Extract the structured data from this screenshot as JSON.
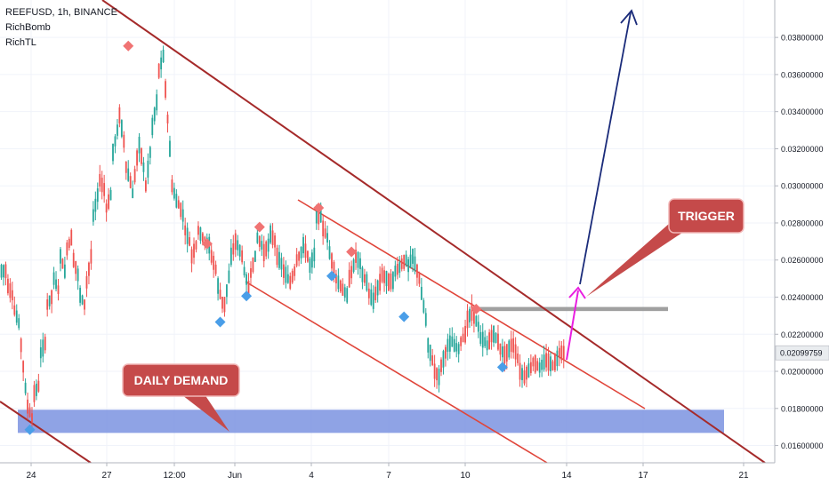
{
  "chart_data": {
    "type": "candlestick",
    "symbol_header": "REEFUSD, 1h, BINANCE",
    "indicators": [
      "RichBomb",
      "RichTL"
    ],
    "x_ticks": [
      "24",
      "27",
      "12:00",
      "Jun",
      "4",
      "7",
      "10",
      "14",
      "17",
      "21"
    ],
    "y_ticks": [
      "0.03800000",
      "0.03600000",
      "0.03400000",
      "0.03200000",
      "0.03000000",
      "0.02800000",
      "0.02600000",
      "0.02400000",
      "0.02200000",
      "0.02000000",
      "0.01800000",
      "0.01600000"
    ],
    "ylim": [
      0.0155,
      0.0393
    ],
    "current_price": {
      "value": 0.02099759,
      "label": "0.02099759"
    },
    "annotations": {
      "trigger": "TRIGGER",
      "daily_demand": "DAILY DEMAND"
    },
    "zones": {
      "daily_demand": {
        "from": 0.01668,
        "to": 0.01793
      },
      "trigger": {
        "from": 0.02325,
        "to": 0.02347
      }
    },
    "candles_path": [
      [
        0.0254,
        0.0254
      ],
      [
        0.0246,
        0.0241
      ],
      [
        0.0233,
        0.0226
      ],
      [
        0.0214,
        0.0191
      ],
      [
        0.0181,
        0.0175
      ],
      [
        0.0188,
        0.0192
      ],
      [
        0.021,
        0.0215
      ],
      [
        0.0236,
        0.024
      ],
      [
        0.025,
        0.0244
      ],
      [
        0.0262,
        0.0254
      ],
      [
        0.0266,
        0.0272
      ],
      [
        0.026,
        0.0252
      ],
      [
        0.0241,
        0.0236
      ],
      [
        0.0248,
        0.0262
      ],
      [
        0.0284,
        0.0295
      ],
      [
        0.0303,
        0.0298
      ],
      [
        0.0288,
        0.0295
      ],
      [
        0.0318,
        0.033
      ],
      [
        0.0338,
        0.0324
      ],
      [
        0.031,
        0.0302
      ],
      [
        0.0296,
        0.0315
      ],
      [
        0.0322,
        0.031
      ],
      [
        0.03,
        0.0318
      ],
      [
        0.0332,
        0.0345
      ],
      [
        0.0362,
        0.037
      ],
      [
        0.0352,
        0.032
      ],
      [
        0.03,
        0.0292
      ],
      [
        0.029,
        0.0284
      ],
      [
        0.0276,
        0.027
      ],
      [
        0.0262,
        0.0268
      ],
      [
        0.0276,
        0.0272
      ],
      [
        0.027,
        0.0268
      ],
      [
        0.0262,
        0.0255
      ],
      [
        0.0246,
        0.0237
      ],
      [
        0.0236,
        0.0251
      ],
      [
        0.0262,
        0.027
      ],
      [
        0.0268,
        0.0262
      ],
      [
        0.0254,
        0.0245
      ],
      [
        0.0253,
        0.0262
      ],
      [
        0.0272,
        0.0268
      ],
      [
        0.0264,
        0.0268
      ],
      [
        0.0274,
        0.027
      ],
      [
        0.0262,
        0.0258
      ],
      [
        0.0254,
        0.025
      ],
      [
        0.0248,
        0.0254
      ],
      [
        0.026,
        0.0264
      ],
      [
        0.0268,
        0.0262
      ],
      [
        0.0257,
        0.0263
      ],
      [
        0.0283,
        0.0285
      ],
      [
        0.0277,
        0.0272
      ],
      [
        0.0264,
        0.0255
      ],
      [
        0.025,
        0.0246
      ],
      [
        0.0244,
        0.0241
      ],
      [
        0.025,
        0.0257
      ],
      [
        0.0262,
        0.0258
      ],
      [
        0.0252,
        0.0248
      ],
      [
        0.0242,
        0.0238
      ],
      [
        0.0242,
        0.0248
      ],
      [
        0.0252,
        0.025
      ],
      [
        0.0248,
        0.0249
      ],
      [
        0.0254,
        0.0256
      ],
      [
        0.0258,
        0.026
      ],
      [
        0.0257,
        0.0262
      ],
      [
        0.0258,
        0.025
      ],
      [
        0.0242,
        0.0228
      ],
      [
        0.0214,
        0.0206
      ],
      [
        0.02,
        0.0197
      ],
      [
        0.0203,
        0.021
      ],
      [
        0.0214,
        0.0216
      ],
      [
        0.0214,
        0.0212
      ],
      [
        0.0216,
        0.022
      ],
      [
        0.0228,
        0.0232
      ],
      [
        0.023,
        0.0224
      ],
      [
        0.0218,
        0.0216
      ],
      [
        0.0214,
        0.0219
      ],
      [
        0.022,
        0.0216
      ],
      [
        0.0212,
        0.0209
      ],
      [
        0.021,
        0.0214
      ],
      [
        0.0214,
        0.0207
      ],
      [
        0.02,
        0.0197
      ],
      [
        0.0199,
        0.0202
      ],
      [
        0.0205,
        0.0203
      ],
      [
        0.0202,
        0.0205
      ],
      [
        0.0206,
        0.0204
      ],
      [
        0.0203,
        0.0207
      ],
      [
        0.021,
        0.021
      ]
    ],
    "markers": {
      "sell": [
        {
          "i": 19,
          "v": 0.03754
        },
        {
          "i": 31,
          "v": 0.02688
        },
        {
          "i": 39,
          "v": 0.02778
        },
        {
          "i": 48,
          "v": 0.02881
        },
        {
          "i": 53,
          "v": 0.02644
        },
        {
          "i": 72,
          "v": 0.02336
        }
      ],
      "buy": [
        {
          "i": 4,
          "v": 0.01685
        },
        {
          "i": 33,
          "v": 0.02266
        },
        {
          "i": 37,
          "v": 0.02406
        },
        {
          "i": 50,
          "v": 0.02514
        },
        {
          "i": 61,
          "v": 0.02294
        },
        {
          "i": 76,
          "v": 0.02022
        }
      ]
    }
  }
}
